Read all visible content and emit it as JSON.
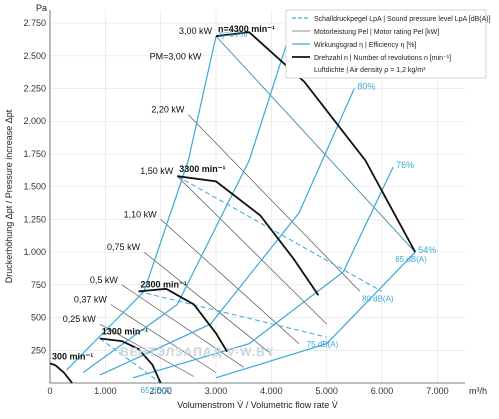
{
  "chart_data": {
    "type": "line",
    "title": "",
    "ylabel": "Druckerhöhung Δpt / Pressure increase Δpt",
    "xlabel": "Volumenstrom V̇ / Volumetric flow rate V̇",
    "x_unit": "m³/h",
    "y_unit": "Pa",
    "xlim": [
      0,
      7500
    ],
    "ylim": [
      0,
      2850
    ],
    "x_ticks": [
      "0",
      "1.000",
      "2.000",
      "3.000",
      "4.000",
      "5.000",
      "6.000",
      "7.000"
    ],
    "y_ticks": [
      "250",
      "500",
      "750",
      "1.000",
      "1.250",
      "1.500",
      "1.750",
      "2.000",
      "2.250",
      "2.500",
      "2.750"
    ],
    "legend": {
      "placement": "top-right",
      "entries": [
        {
          "style": "dashed-blue",
          "text": "Schalldruckpegel LpA | Sound pressure level LpA [dB(A)]"
        },
        {
          "style": "thin-gray",
          "text": "Motorleistung Pel | Motor rating Pel [kW]"
        },
        {
          "style": "solid-blue",
          "text": "Wirkungsgrad η | Efficiency η [%]"
        },
        {
          "style": "thick-black",
          "text": "Drehzahl n | Number of revolutions n [min⁻¹]"
        },
        {
          "style": "none",
          "text": "Luftdichte | Air density ρ = 1,2 kg/m³"
        }
      ]
    },
    "speed_curves": [
      {
        "label": "300 min⁻¹",
        "x": [
          0,
          100,
          250,
          400
        ],
        "y": [
          150,
          135,
          80,
          0
        ]
      },
      {
        "label": "1300 min⁻¹",
        "x": [
          900,
          1300,
          1600,
          1850,
          2000
        ],
        "y": [
          340,
          320,
          260,
          140,
          0
        ]
      },
      {
        "label": "2300 min⁻¹",
        "x": [
          1600,
          2100,
          2600,
          3000,
          3200
        ],
        "y": [
          700,
          720,
          600,
          380,
          240
        ]
      },
      {
        "label": "3300 min⁻¹",
        "x": [
          2300,
          3000,
          3800,
          4400,
          4850
        ],
        "y": [
          1580,
          1540,
          1280,
          950,
          670
        ]
      },
      {
        "label": "n=4300 min⁻¹",
        "x": [
          3000,
          3600,
          4600,
          5700,
          6600
        ],
        "y": [
          2650,
          2680,
          2300,
          1700,
          1000
        ]
      }
    ],
    "efficiency_curves": [
      {
        "label": "η=67%",
        "x": [
          300,
          1700,
          2500,
          3000
        ],
        "y": [
          100,
          700,
          1700,
          2650
        ]
      },
      {
        "label": "76%",
        "x": [
          600,
          2300,
          3600,
          4300
        ],
        "y": [
          80,
          600,
          1700,
          2620
        ]
      },
      {
        "label": "80%",
        "x": [
          900,
          2900,
          4500,
          5500
        ],
        "y": [
          60,
          450,
          1300,
          2250
        ]
      },
      {
        "label": "76%",
        "x": [
          1500,
          3600,
          5300,
          6200
        ],
        "y": [
          40,
          300,
          850,
          1650
        ]
      },
      {
        "label": "54%",
        "x": [
          3000,
          5000,
          6600
        ],
        "y": [
          40,
          300,
          1000
        ]
      }
    ],
    "motor_rating_lines": [
      {
        "label": "3,00 kW",
        "x": [
          3000,
          6600
        ],
        "y": [
          2650,
          1000
        ]
      },
      {
        "label": "2,20 kW",
        "x": [
          2500,
          5600
        ],
        "y": [
          2050,
          700
        ]
      },
      {
        "label": "1,50 kW",
        "x": [
          2300,
          5000
        ],
        "y": [
          1580,
          450
        ]
      },
      {
        "label": "1,10 kW",
        "x": [
          2000,
          4500
        ],
        "y": [
          1250,
          300
        ]
      },
      {
        "label": "0,75 kW",
        "x": [
          1700,
          4000
        ],
        "y": [
          1000,
          220
        ]
      },
      {
        "label": "0,5 kW",
        "x": [
          1300,
          3500
        ],
        "y": [
          750,
          120
        ]
      },
      {
        "label": "0,37 kW",
        "x": [
          1100,
          3000
        ],
        "y": [
          600,
          80
        ]
      },
      {
        "label": "0,25 kW",
        "x": [
          900,
          2600
        ],
        "y": [
          450,
          50
        ]
      }
    ],
    "sound_level_lines": [
      {
        "label": "85 dB(A)",
        "x": [
          3000,
          6600
        ],
        "y": [
          2650,
          1000
        ]
      },
      {
        "label": "80 dB(A)",
        "x": [
          2300,
          6000
        ],
        "y": [
          1580,
          700
        ]
      },
      {
        "label": "75 dB(A)",
        "x": [
          1600,
          5000
        ],
        "y": [
          700,
          350
        ]
      },
      {
        "label": "65 dB(A)",
        "x": [
          900,
          2000
        ],
        "y": [
          340,
          0
        ]
      }
    ]
  },
  "annotations": {
    "pm_label": "PM=3,00 kW",
    "watermark": "ВЕНТЭЛЗАПАД   V-W.BY"
  }
}
